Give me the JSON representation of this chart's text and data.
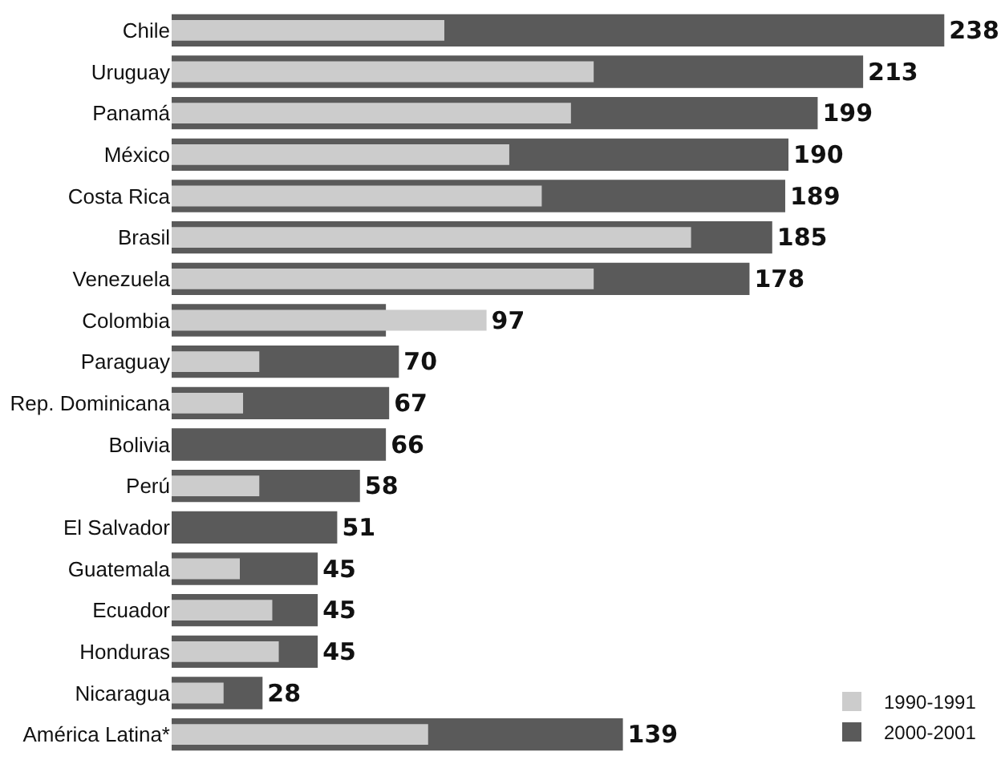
{
  "chart_data": {
    "type": "bar",
    "orientation": "horizontal",
    "categories": [
      "Chile",
      "Uruguay",
      "Panamá",
      "México",
      "Costa Rica",
      "Brasil",
      "Venezuela",
      "Colombia",
      "Paraguay",
      "Rep. Dominicana",
      "Bolivia",
      "Perú",
      "El Salvador",
      "Guatemala",
      "Ecuador",
      "Honduras",
      "Nicaragua",
      "América Latina*"
    ],
    "series": [
      {
        "name": "2000-2001",
        "color": "#5a5a5a",
        "values": [
          238,
          213,
          199,
          190,
          189,
          185,
          178,
          66,
          70,
          67,
          66,
          58,
          51,
          45,
          45,
          45,
          28,
          139
        ],
        "value_labels": [
          "238",
          "213",
          "199",
          "190",
          "189",
          "185",
          "178",
          null,
          "70",
          "67",
          "66",
          "58",
          "51",
          "45",
          "45",
          "45",
          "28",
          "139"
        ]
      },
      {
        "name": "1990-1991",
        "color": "#cccccc",
        "values": [
          84,
          130,
          123,
          104,
          114,
          160,
          130,
          97,
          27,
          22,
          null,
          27,
          null,
          21,
          31,
          33,
          16,
          79
        ],
        "value_labels": [
          null,
          null,
          null,
          null,
          null,
          null,
          null,
          "97",
          null,
          null,
          null,
          null,
          null,
          null,
          null,
          null,
          null,
          null
        ]
      }
    ],
    "legend": "bottom right"
  }
}
